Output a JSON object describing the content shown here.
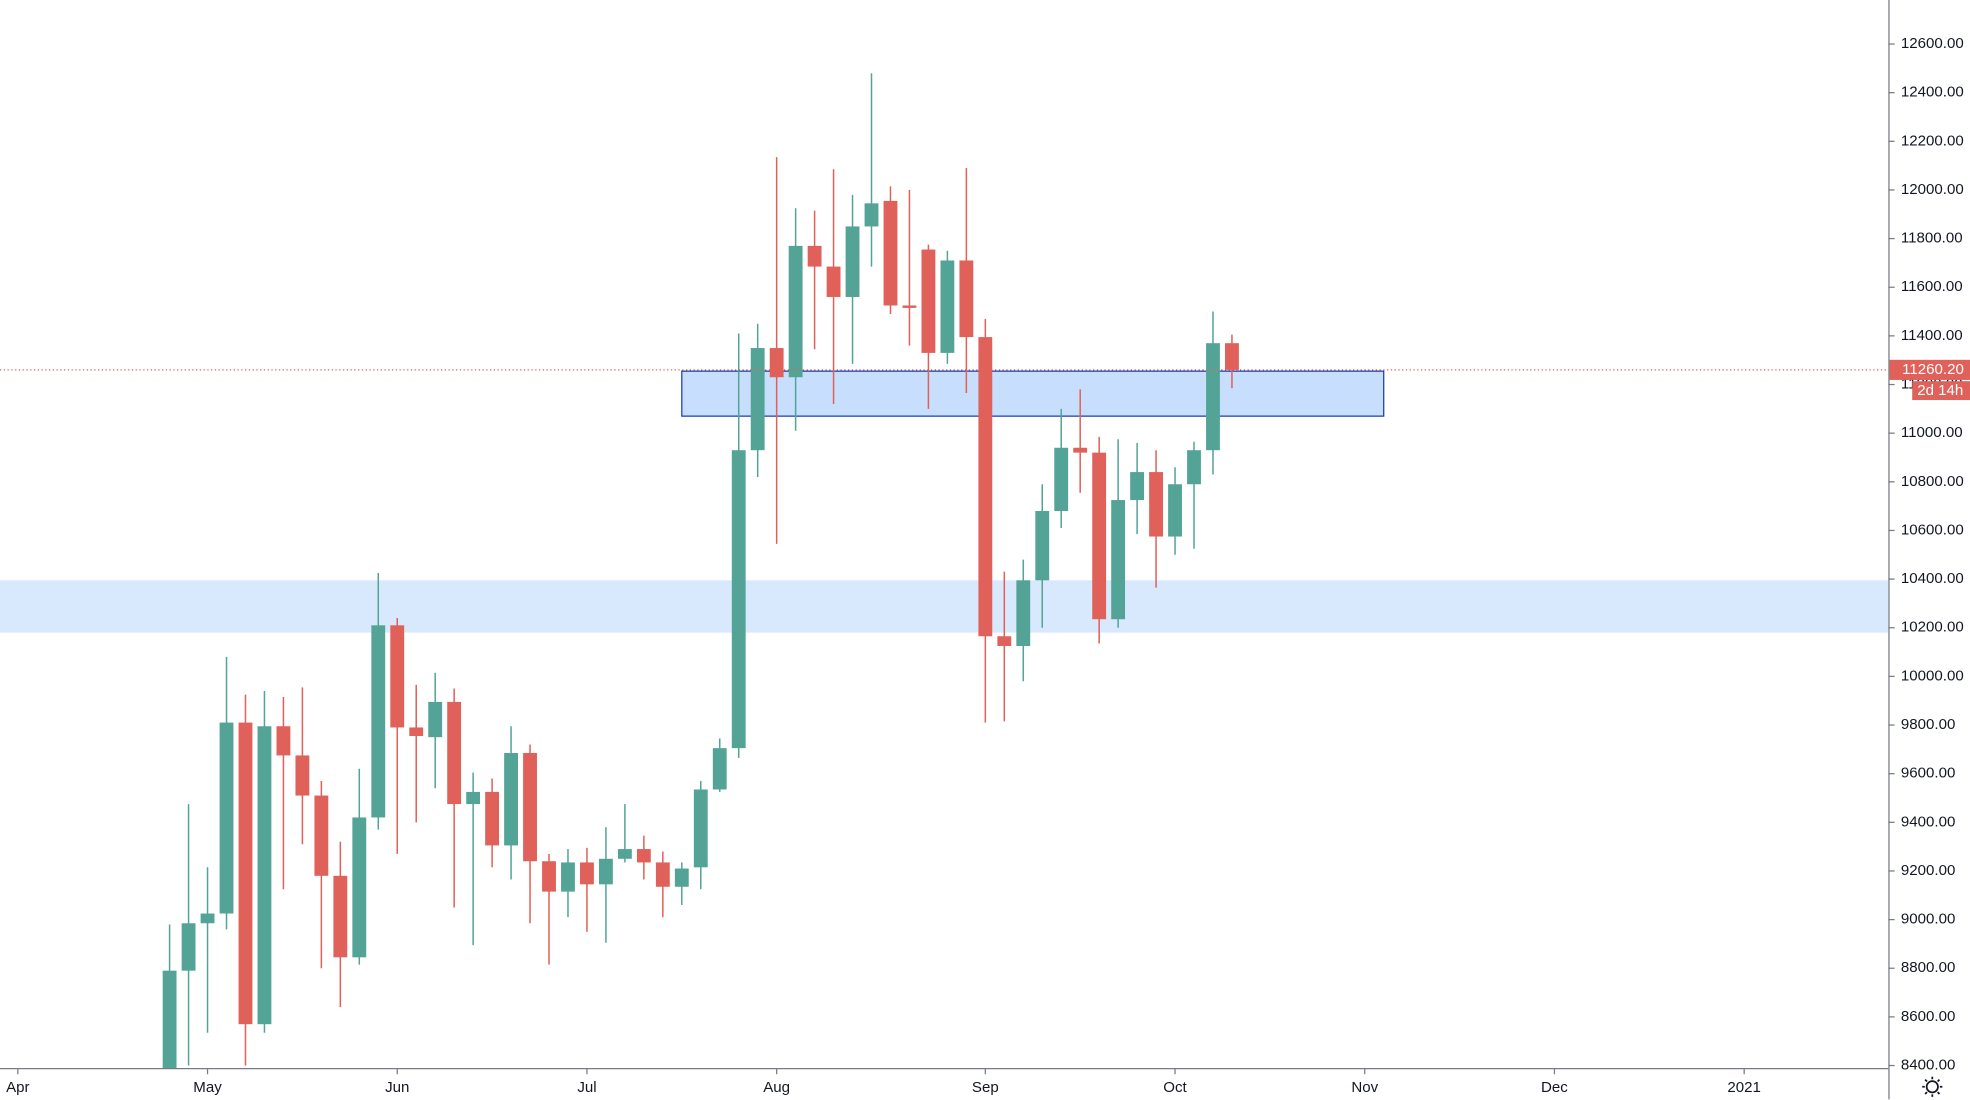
{
  "chart_data": {
    "type": "candlestick",
    "colors": {
      "up": "#53a497",
      "down": "#e0605a"
    },
    "xlim": [
      -8.94,
      90.6
    ],
    "xticks": [
      {
        "value": -8,
        "label": "Apr"
      },
      {
        "value": 2,
        "label": "May"
      },
      {
        "value": 12,
        "label": "Jun"
      },
      {
        "value": 22,
        "label": "Jul"
      },
      {
        "value": 32,
        "label": "Aug"
      },
      {
        "value": 43,
        "label": "Sep"
      },
      {
        "value": 53,
        "label": "Oct"
      },
      {
        "value": 63,
        "label": "Nov"
      },
      {
        "value": 73,
        "label": "Dec"
      },
      {
        "value": 83,
        "label": "2021"
      }
    ],
    "ylim": [
      8390,
      12781
    ],
    "yticks": [
      {
        "value": 8400,
        "label": "8400.00"
      },
      {
        "value": 8600,
        "label": "8600.00"
      },
      {
        "value": 8800,
        "label": "8800.00"
      },
      {
        "value": 9000,
        "label": "9000.00"
      },
      {
        "value": 9200,
        "label": "9200.00"
      },
      {
        "value": 9400,
        "label": "9400.00"
      },
      {
        "value": 9600,
        "label": "9600.00"
      },
      {
        "value": 9800,
        "label": "9800.00"
      },
      {
        "value": 10000,
        "label": "10000.00"
      },
      {
        "value": 10200,
        "label": "10200.00"
      },
      {
        "value": 10400,
        "label": "10400.00"
      },
      {
        "value": 10600,
        "label": "10600.00"
      },
      {
        "value": 10800,
        "label": "10800.00"
      },
      {
        "value": 11000,
        "label": "11000.00"
      },
      {
        "value": 11200,
        "label": "11200.00"
      },
      {
        "value": 11400,
        "label": "11400.00"
      },
      {
        "value": 11600,
        "label": "11600.00"
      },
      {
        "value": 11800,
        "label": "11800.00"
      },
      {
        "value": 12000,
        "label": "12000.00"
      },
      {
        "value": 12200,
        "label": "12200.00"
      },
      {
        "value": 12400,
        "label": "12400.00"
      },
      {
        "value": 12600,
        "label": "12600.00"
      }
    ],
    "open": [
      8350,
      8790,
      8985,
      9025,
      9810,
      8570,
      9795,
      9675,
      9510,
      9180,
      8845,
      9420,
      10210,
      9790,
      9750,
      9895,
      9475,
      9525,
      9305,
      9685,
      9240,
      9115,
      9235,
      9145,
      9250,
      9290,
      9235,
      9135,
      9215,
      9535,
      9705,
      10930,
      11350,
      11230,
      11770,
      11685,
      11560,
      11850,
      11955,
      11525,
      11755,
      11330,
      11710,
      11395,
      10165,
      10125,
      10395,
      10680,
      10940,
      10920,
      10235,
      10725,
      10840,
      10575,
      10790,
      10930,
      11370
    ],
    "high": [
      8980,
      9475,
      9215,
      10080,
      9925,
      9940,
      9915,
      9955,
      9570,
      9320,
      9620,
      10425,
      10240,
      9965,
      10015,
      9950,
      9605,
      9580,
      9795,
      9720,
      9270,
      9290,
      9295,
      9380,
      9475,
      9345,
      9280,
      9235,
      9570,
      9745,
      11410,
      11450,
      12135,
      11925,
      11915,
      12085,
      11980,
      12480,
      12015,
      12000,
      11775,
      11750,
      12090,
      11470,
      10430,
      10480,
      10790,
      11100,
      11180,
      10985,
      10975,
      10960,
      10930,
      10860,
      10965,
      11500,
      11405
    ],
    "low": [
      8300,
      8400,
      8535,
      8960,
      8400,
      8535,
      9125,
      9310,
      8800,
      8640,
      8815,
      9370,
      9270,
      9400,
      9540,
      9050,
      8895,
      9215,
      9165,
      8985,
      8815,
      9010,
      8950,
      8905,
      9235,
      9165,
      9010,
      9060,
      9125,
      9525,
      9665,
      10820,
      10545,
      11010,
      11345,
      11120,
      11285,
      11685,
      11490,
      11360,
      11100,
      11285,
      11165,
      9810,
      9815,
      9980,
      10200,
      10610,
      10755,
      10135,
      10200,
      10585,
      10365,
      10500,
      10525,
      10830,
      11185
    ],
    "close": [
      8790,
      8985,
      9025,
      9810,
      8570,
      9795,
      9675,
      9510,
      9180,
      8845,
      9420,
      10210,
      9790,
      9755,
      9895,
      9475,
      9525,
      9305,
      9685,
      9240,
      9115,
      9235,
      9145,
      9250,
      9290,
      9235,
      9135,
      9210,
      9535,
      9705,
      10930,
      11350,
      11230,
      11770,
      11685,
      11560,
      11850,
      11945,
      11525,
      11515,
      11330,
      11710,
      11395,
      10165,
      10125,
      10395,
      10680,
      10940,
      10920,
      10235,
      10725,
      10840,
      10575,
      10790,
      10930,
      11370,
      11260.2
    ],
    "zones": [
      {
        "xlim": [
          27,
          64
        ],
        "ylim": [
          11070,
          11255
        ]
      },
      {
        "ylim": [
          10180,
          10395
        ]
      }
    ],
    "last_price": {
      "value": 11260.2,
      "label": "11260.20",
      "countdown": "2d 14h"
    }
  }
}
